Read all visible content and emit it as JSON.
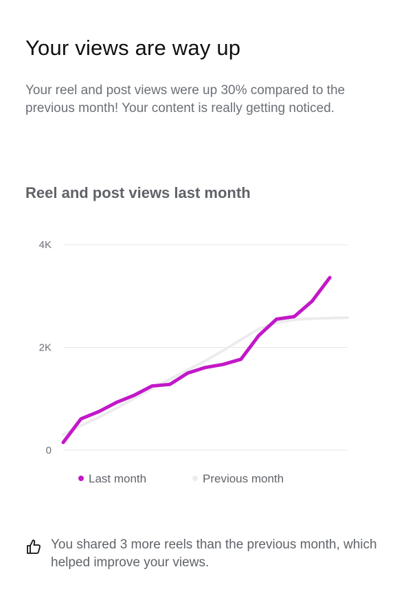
{
  "header": {
    "title": "Your views are way up",
    "summary": "Your reel and post views were up 30% compared to the previous month! Your content is really getting noticed."
  },
  "chart_data": {
    "type": "line",
    "title": "Reel and post views last month",
    "xlabel": "",
    "ylabel": "",
    "ylim": [
      0,
      4000
    ],
    "yticks": [
      {
        "value": 0,
        "label": "0"
      },
      {
        "value": 2000,
        "label": "2K"
      },
      {
        "value": 4000,
        "label": "4K"
      }
    ],
    "grid": true,
    "legend_position": "bottom",
    "x": [
      1,
      2,
      3,
      4,
      5,
      6,
      7,
      8,
      9,
      10,
      11,
      12,
      13,
      14,
      15,
      16,
      17
    ],
    "series": [
      {
        "name": "Last month",
        "color": "#c218c8",
        "values": [
          150,
          610,
          750,
          930,
          1070,
          1250,
          1280,
          1500,
          1610,
          1670,
          1770,
          2230,
          2550,
          2600,
          2900,
          3360,
          null
        ]
      },
      {
        "name": "Previous month",
        "color": "#ececee",
        "values": [
          300,
          480,
          640,
          820,
          1010,
          1200,
          1380,
          1560,
          1740,
          1940,
          2150,
          2360,
          2480,
          2540,
          2560,
          2570,
          2580
        ]
      }
    ]
  },
  "insight": {
    "icon": "thumbs-up-icon",
    "text": "You shared 3 more reels than the previous month, which helped improve your views."
  }
}
